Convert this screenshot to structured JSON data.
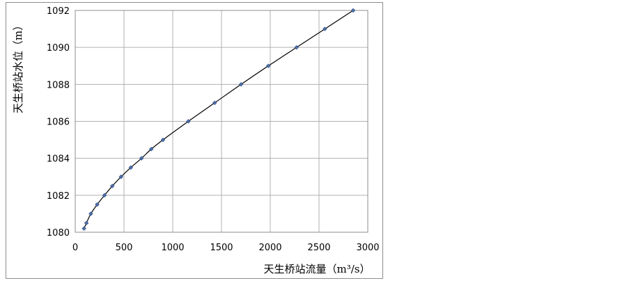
{
  "chart_data": {
    "type": "scatter",
    "title": "",
    "xlabel": "天生桥站流量（m³/s）",
    "ylabel": "天生桥站水位（m）",
    "xlim": [
      0,
      3000
    ],
    "ylim": [
      1080,
      1092
    ],
    "x_ticks": [
      "0",
      "500",
      "1000",
      "1500",
      "2000",
      "2500",
      "3000"
    ],
    "y_ticks": [
      "1080",
      "1082",
      "1084",
      "1086",
      "1088",
      "1090",
      "1092"
    ],
    "grid": true,
    "legend": "none",
    "marker_color": "#4f6fa8",
    "line_color": "#000000",
    "series": [
      {
        "x": [
          90,
          115,
          160,
          225,
          300,
          380,
          470,
          570,
          680,
          780,
          900,
          1160,
          1430,
          1700,
          1980,
          2270,
          2560,
          2850
        ],
        "y": [
          1080.2,
          1080.5,
          1081.0,
          1081.5,
          1082.0,
          1082.5,
          1083.0,
          1083.5,
          1084.0,
          1084.5,
          1085.0,
          1086.0,
          1087.0,
          1088.0,
          1089.0,
          1090.0,
          1091.0,
          1092.0
        ]
      }
    ]
  }
}
